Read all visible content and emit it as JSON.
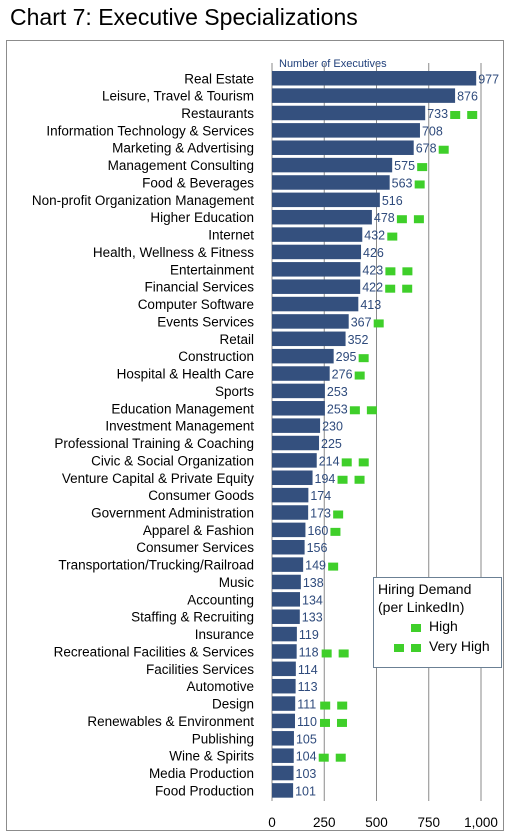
{
  "title": "Chart 7: Executive Specializations",
  "chart_data": {
    "type": "bar",
    "orientation": "horizontal",
    "axis_title": "Number of Executives",
    "xlim": [
      0,
      1000
    ],
    "x_ticks": [
      "0",
      "250",
      "500",
      "750",
      "1,000"
    ],
    "grid": "vertical",
    "bar_color": "#34507e",
    "demand_color": "#3fcf2a",
    "categories": [
      {
        "label": "Real Estate",
        "value": 977,
        "demand": "none"
      },
      {
        "label": "Leisure, Travel & Tourism",
        "value": 876,
        "demand": "none"
      },
      {
        "label": "Restaurants",
        "value": 733,
        "demand": "very-high"
      },
      {
        "label": "Information Technology & Services",
        "value": 708,
        "demand": "none"
      },
      {
        "label": "Marketing & Advertising",
        "value": 678,
        "demand": "high"
      },
      {
        "label": "Management Consulting",
        "value": 575,
        "demand": "high"
      },
      {
        "label": "Food & Beverages",
        "value": 563,
        "demand": "high"
      },
      {
        "label": "Non-profit Organization Management",
        "value": 516,
        "demand": "none"
      },
      {
        "label": "Higher Education",
        "value": 478,
        "demand": "very-high"
      },
      {
        "label": "Internet",
        "value": 432,
        "demand": "high"
      },
      {
        "label": "Health, Wellness & Fitness",
        "value": 426,
        "demand": "none"
      },
      {
        "label": "Entertainment",
        "value": 423,
        "demand": "very-high"
      },
      {
        "label": "Financial Services",
        "value": 422,
        "demand": "very-high"
      },
      {
        "label": "Computer Software",
        "value": 413,
        "demand": "none"
      },
      {
        "label": "Events Services",
        "value": 367,
        "demand": "high"
      },
      {
        "label": "Retail",
        "value": 352,
        "demand": "none"
      },
      {
        "label": "Construction",
        "value": 295,
        "demand": "high"
      },
      {
        "label": "Hospital & Health Care",
        "value": 276,
        "demand": "high"
      },
      {
        "label": "Sports",
        "value": 253,
        "demand": "none"
      },
      {
        "label": "Education Management",
        "value": 253,
        "demand": "very-high"
      },
      {
        "label": "Investment Management",
        "value": 230,
        "demand": "none"
      },
      {
        "label": "Professional Training & Coaching",
        "value": 225,
        "demand": "none"
      },
      {
        "label": "Civic & Social Organization",
        "value": 214,
        "demand": "very-high"
      },
      {
        "label": "Venture Capital & Private Equity",
        "value": 194,
        "demand": "very-high"
      },
      {
        "label": "Consumer Goods",
        "value": 174,
        "demand": "none"
      },
      {
        "label": "Government Administration",
        "value": 173,
        "demand": "high"
      },
      {
        "label": "Apparel & Fashion",
        "value": 160,
        "demand": "high"
      },
      {
        "label": "Consumer Services",
        "value": 156,
        "demand": "none"
      },
      {
        "label": "Transportation/Trucking/Railroad",
        "value": 149,
        "demand": "high"
      },
      {
        "label": "Music",
        "value": 138,
        "demand": "none"
      },
      {
        "label": "Accounting",
        "value": 134,
        "demand": "none"
      },
      {
        "label": "Staffing & Recruiting",
        "value": 133,
        "demand": "none"
      },
      {
        "label": "Insurance",
        "value": 119,
        "demand": "none"
      },
      {
        "label": "Recreational Facilities & Services",
        "value": 118,
        "demand": "very-high"
      },
      {
        "label": "Facilities Services",
        "value": 114,
        "demand": "none"
      },
      {
        "label": "Automotive",
        "value": 113,
        "demand": "none"
      },
      {
        "label": "Design",
        "value": 111,
        "demand": "very-high"
      },
      {
        "label": "Renewables & Environment",
        "value": 110,
        "demand": "very-high"
      },
      {
        "label": "Publishing",
        "value": 105,
        "demand": "none"
      },
      {
        "label": "Wine & Spirits",
        "value": 104,
        "demand": "very-high"
      },
      {
        "label": "Media Production",
        "value": 103,
        "demand": "none"
      },
      {
        "label": "Food Production",
        "value": 101,
        "demand": "none"
      }
    ],
    "legend": {
      "title_line1": "Hiring Demand",
      "title_line2": "(per LinkedIn)",
      "high_label": "High",
      "very_high_label": "Very High",
      "placement": "bottom-right"
    }
  }
}
